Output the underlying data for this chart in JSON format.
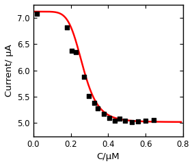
{
  "scatter_x": [
    0.02,
    0.18,
    0.205,
    0.225,
    0.27,
    0.295,
    0.325,
    0.345,
    0.375,
    0.405,
    0.435,
    0.46,
    0.49,
    0.525,
    0.56,
    0.6,
    0.645
  ],
  "scatter_y": [
    7.08,
    6.82,
    6.38,
    6.35,
    5.88,
    5.52,
    5.38,
    5.28,
    5.18,
    5.1,
    5.05,
    5.08,
    5.05,
    5.02,
    5.03,
    5.05,
    5.06
  ],
  "scatter_color": "#000000",
  "scatter_marker": "s",
  "scatter_size": 18,
  "curve_color": "#ff0000",
  "curve_linewidth": 1.8,
  "xlabel": "C/μM",
  "ylabel": "Current/ μA",
  "xlim": [
    0.0,
    0.8
  ],
  "ylim": [
    4.75,
    7.25
  ],
  "xticks": [
    0.0,
    0.2,
    0.4,
    0.6,
    0.8
  ],
  "yticks": [
    5.0,
    5.5,
    6.0,
    6.5,
    7.0
  ],
  "xlabel_fontsize": 9.5,
  "ylabel_fontsize": 9.5,
  "tick_fontsize": 8.5,
  "background_color": "#ffffff",
  "sigmoid_Imax": 7.12,
  "sigmoid_Imin": 5.02,
  "sigmoid_K": 0.265,
  "sigmoid_n": 6.5
}
